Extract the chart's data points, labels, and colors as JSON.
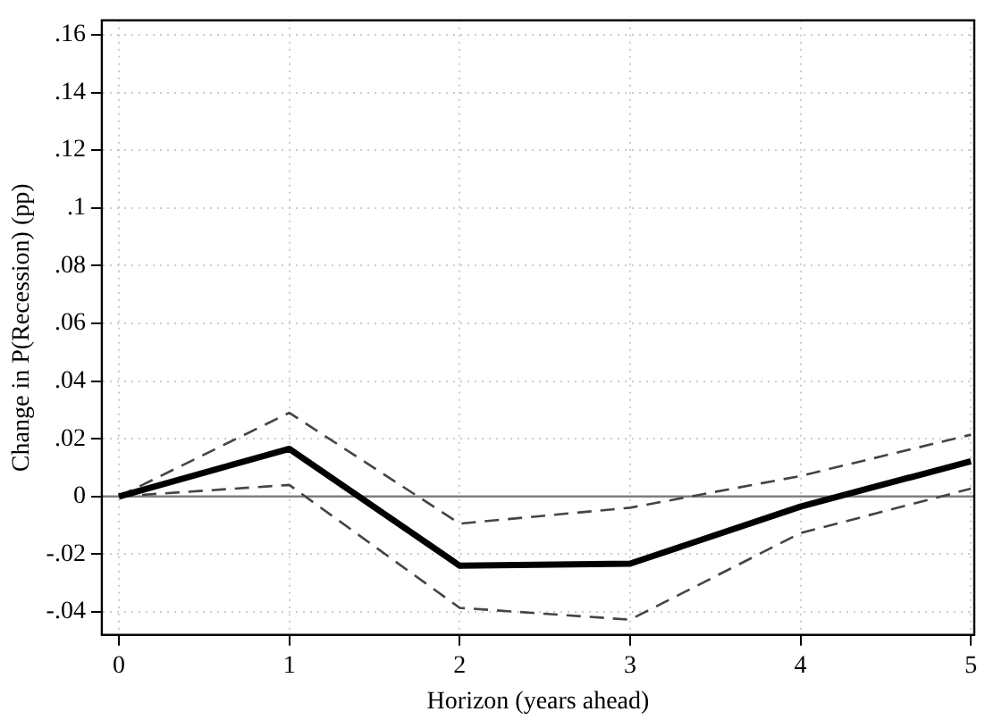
{
  "chart_data": {
    "type": "line",
    "xlabel": "Horizon (years ahead)",
    "ylabel": "Change in P(Recession) (pp)",
    "x": [
      0,
      1,
      2,
      3,
      4,
      5
    ],
    "series": [
      {
        "color": "#000000",
        "line_style": "solid",
        "values": [
          0,
          0.0165,
          -0.024,
          -0.0233,
          -0.0035,
          0.0122
        ]
      },
      {
        "color": "#444444",
        "line_style": "dashed",
        "values": [
          0,
          0.029,
          -0.0094,
          -0.0039,
          0.0071,
          0.0214
        ]
      },
      {
        "color": "#444444",
        "line_style": "dashed",
        "values": [
          0,
          0.004,
          -0.0386,
          -0.0427,
          -0.0127,
          0.0027
        ]
      }
    ],
    "xlim": [
      -0.1,
      5.02
    ],
    "xticks": [
      0,
      1,
      2,
      3,
      4,
      5
    ],
    "ylim": [
      -0.048,
      0.165
    ],
    "yticks": [
      {
        "value": -0.04,
        "label": "-.04"
      },
      {
        "value": -0.02,
        "label": "-.02"
      },
      {
        "value": 0,
        "label": "0"
      },
      {
        "value": 0.02,
        "label": ".02"
      },
      {
        "value": 0.04,
        "label": ".04"
      },
      {
        "value": 0.06,
        "label": ".06"
      },
      {
        "value": 0.08,
        "label": ".08"
      },
      {
        "value": 0.1,
        "label": ".1"
      },
      {
        "value": 0.12,
        "label": ".12"
      },
      {
        "value": 0.14,
        "label": ".14"
      },
      {
        "value": 0.16,
        "label": ".16"
      }
    ],
    "ref_lines": [
      {
        "axis": "y",
        "value": 0,
        "color": "#808080"
      }
    ],
    "grid": true,
    "legend": false,
    "marker": "none"
  }
}
